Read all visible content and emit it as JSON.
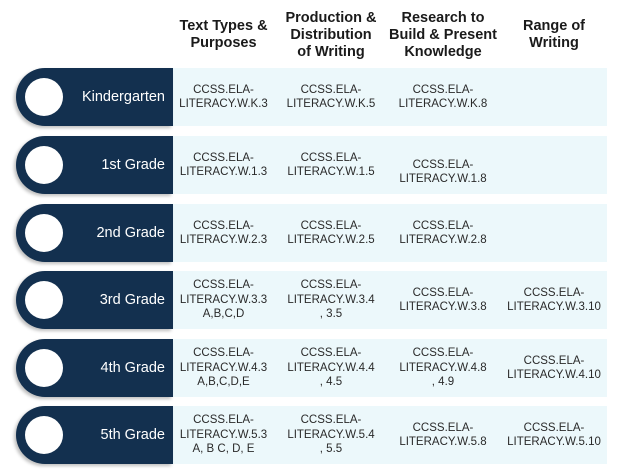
{
  "headers": {
    "col1": "Text Types &\nPurposes",
    "col2": "Production &\nDistribution\nof Writing",
    "col3": "Research to\nBuild & Present\nKnowledge",
    "col4": "Range of\nWriting"
  },
  "rows": [
    {
      "grade": "Kindergarten",
      "c1": "CCSS.ELA-\nLITERACY.W.K.3",
      "c2": "CCSS.ELA-\nLITERACY.W.K.5",
      "c3": "CCSS.ELA-\nLITERACY.W.K.8",
      "c4": ""
    },
    {
      "grade": "1st Grade",
      "c1": "CCSS.ELA-\nLITERACY.W.1.3",
      "c2": "CCSS.ELA-\nLITERACY.W.1.5",
      "c3": "CCSS.ELA-\nLITERACY.W.1.8",
      "c4": ""
    },
    {
      "grade": "2nd Grade",
      "c1": "CCSS.ELA-\nLITERACY.W.2.3",
      "c2": "CCSS.ELA-\nLITERACY.W.2.5",
      "c3": "CCSS.ELA-\nLITERACY.W.2.8",
      "c4": ""
    },
    {
      "grade": "3rd Grade",
      "c1": "CCSS.ELA-\nLITERACY.W.3.3\nA,B,C,D",
      "c2": "CCSS.ELA-\nLITERACY.W.3.4\n, 3.5",
      "c3": "CCSS.ELA-\nLITERACY.W.3.8",
      "c4": "CCSS.ELA-\nLITERACY.W.3.10"
    },
    {
      "grade": "4th Grade",
      "c1": "CCSS.ELA-\nLITERACY.W.4.3\nA,B,C,D,E",
      "c2": "CCSS.ELA-\nLITERACY.W.4.4\n, 4.5",
      "c3": "CCSS.ELA-\nLITERACY.W.4.8\n, 4.9",
      "c4": "CCSS.ELA-\nLITERACY.W.4.10"
    },
    {
      "grade": "5th Grade",
      "c1": "CCSS.ELA-\nLITERACY.W.5.3\nA, B C, D, E",
      "c2": "CCSS.ELA-\nLITERACY.W.5.4\n, 5.5",
      "c3": "CCSS.ELA-\nLITERACY.W.5.8",
      "c4": "CCSS.ELA-\nLITERACY.W.5.10"
    }
  ],
  "colors": {
    "pill": "#13304f",
    "cell_bg": "#ecf8fb",
    "circle": "#ffffff",
    "grade_text": "#ffffff"
  }
}
